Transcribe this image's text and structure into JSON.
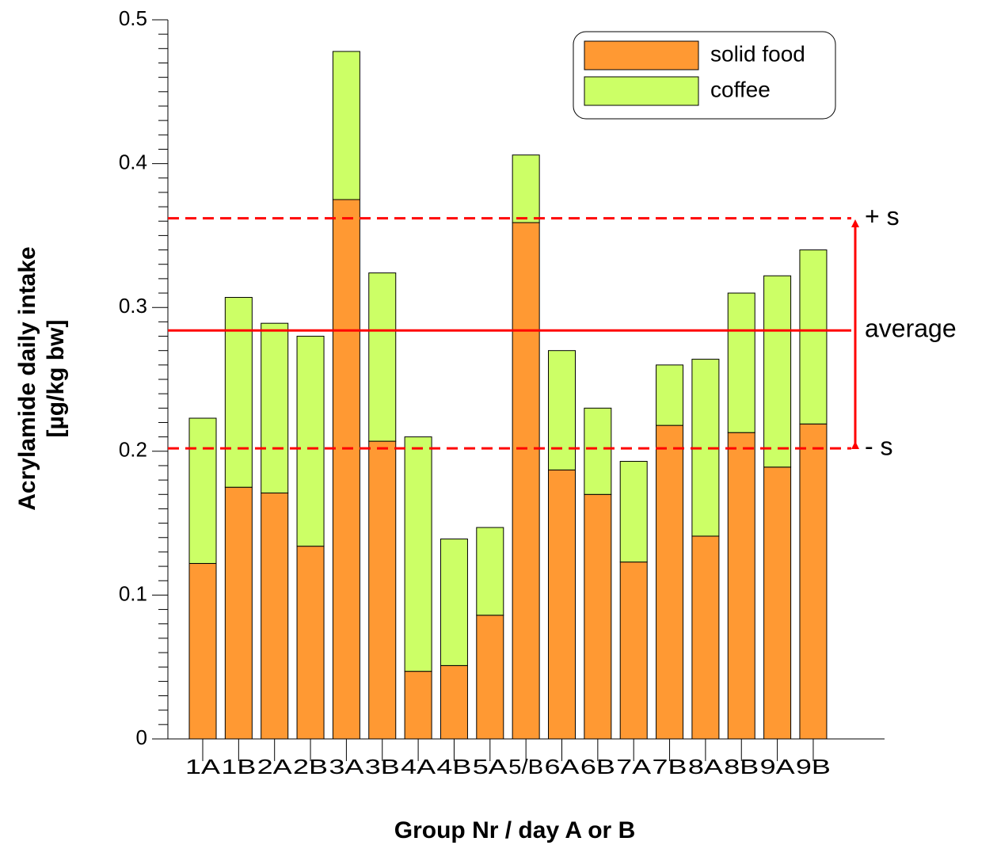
{
  "chart_data": {
    "type": "bar",
    "stacked": true,
    "xlabel": "Group Nr / day A or B",
    "ylabel": [
      "Acrylamide daily intake",
      "[µg/kg bw]"
    ],
    "categories": [
      "1A",
      "1B",
      "2A",
      "2B",
      "3A",
      "3B",
      "4A",
      "4B",
      "5A",
      "5/B",
      "6A",
      "6B",
      "7A",
      "7B",
      "8A",
      "8B",
      "9A",
      "9B"
    ],
    "series": [
      {
        "name": "solid food",
        "color": "#ff9933",
        "values": [
          0.122,
          0.175,
          0.171,
          0.134,
          0.375,
          0.207,
          0.047,
          0.051,
          0.086,
          0.359,
          0.187,
          0.17,
          0.123,
          0.218,
          0.141,
          0.213,
          0.189,
          0.219
        ]
      },
      {
        "name": "coffee",
        "color": "#ccff66",
        "values": [
          0.101,
          0.132,
          0.118,
          0.146,
          0.103,
          0.117,
          0.163,
          0.088,
          0.061,
          0.047,
          0.083,
          0.06,
          0.07,
          0.042,
          0.123,
          0.097,
          0.133,
          0.121
        ]
      }
    ],
    "ylim": [
      0,
      0.5
    ],
    "yticks": [
      0,
      0.1,
      0.2,
      0.3,
      0.4,
      0.5
    ],
    "reference_lines": [
      {
        "label": "+ s",
        "value": 0.362,
        "style": "dashed",
        "color": "#ff0000"
      },
      {
        "label": "average",
        "value": 0.284,
        "style": "solid",
        "color": "#ff0000"
      },
      {
        "label": "- s",
        "value": 0.202,
        "style": "dashed",
        "color": "#ff0000"
      }
    ],
    "legend": "top-right"
  }
}
